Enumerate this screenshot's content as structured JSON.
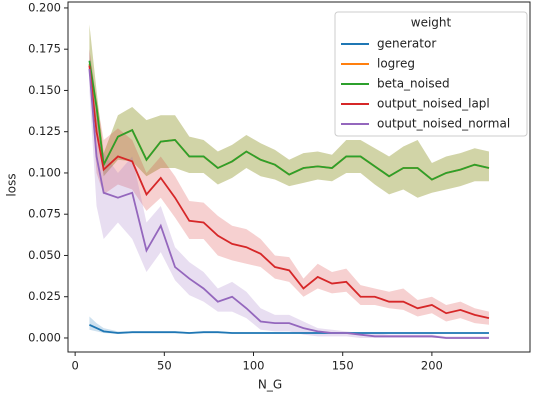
{
  "chart_data": {
    "type": "line",
    "xlabel": "N_G",
    "ylabel": "loss",
    "legend_title": "weight",
    "legend_position": "upper right",
    "x": [
      8,
      12,
      16,
      24,
      32,
      40,
      48,
      56,
      64,
      72,
      80,
      88,
      96,
      104,
      112,
      120,
      128,
      136,
      144,
      152,
      160,
      168,
      176,
      184,
      192,
      200,
      208,
      216,
      224,
      232
    ],
    "xlim": [
      -4,
      255
    ],
    "xticks": [
      0,
      50,
      100,
      150,
      200
    ],
    "ylim": [
      -0.0085,
      0.2036
    ],
    "yticks": [
      {
        "value": 0,
        "label": "0.000"
      },
      {
        "value": 0.025,
        "label": "0.025"
      },
      {
        "value": 0.05,
        "label": "0.050"
      },
      {
        "value": 0.075,
        "label": "0.075"
      },
      {
        "value": 0.1,
        "label": "0.100"
      },
      {
        "value": 0.125,
        "label": "0.125"
      },
      {
        "value": 0.15,
        "label": "0.150"
      },
      {
        "value": 0.175,
        "label": "0.175"
      },
      {
        "value": 0.2,
        "label": "0.200"
      }
    ],
    "series": [
      {
        "name": "generator",
        "color": "#1f77b4",
        "values": [
          0.008,
          0.006,
          0.004,
          0.003,
          0.0035,
          0.0035,
          0.0035,
          0.0035,
          0.003,
          0.0035,
          0.0035,
          0.003,
          0.003,
          0.003,
          0.003,
          0.003,
          0.003,
          0.003,
          0.003,
          0.003,
          0.003,
          0.003,
          0.003,
          0.003,
          0.003,
          0.003,
          0.003,
          0.003,
          0.003,
          0.003
        ],
        "lower": [
          0.005,
          0.004,
          0.003,
          0.0025,
          0.003,
          0.003,
          0.003,
          0.003,
          0.0025,
          0.003,
          0.003,
          0.0025,
          0.0025,
          0.0025,
          0.0025,
          0.0025,
          0.0025,
          0.0025,
          0.0025,
          0.0025,
          0.0025,
          0.0025,
          0.0025,
          0.0025,
          0.0025,
          0.0025,
          0.0025,
          0.0025,
          0.0025,
          0.0025
        ],
        "upper": [
          0.013,
          0.009,
          0.006,
          0.004,
          0.004,
          0.004,
          0.004,
          0.004,
          0.0035,
          0.004,
          0.004,
          0.0035,
          0.0035,
          0.0035,
          0.0035,
          0.0035,
          0.0035,
          0.0035,
          0.0035,
          0.0035,
          0.0035,
          0.0035,
          0.0035,
          0.0035,
          0.0035,
          0.0035,
          0.0035,
          0.0035,
          0.0035,
          0.0035
        ]
      },
      {
        "name": "logreg",
        "color": "#ff7f0e",
        "values": [
          0.166,
          0.14,
          0.105,
          0.122,
          0.126,
          0.108,
          0.119,
          0.12,
          0.11,
          0.11,
          0.103,
          0.107,
          0.113,
          0.108,
          0.105,
          0.099,
          0.103,
          0.104,
          0.103,
          0.11,
          0.11,
          0.104,
          0.098,
          0.103,
          0.103,
          0.096,
          0.1,
          0.102,
          0.105,
          0.103
        ],
        "lower": [
          0.16,
          0.13,
          0.098,
          0.108,
          0.107,
          0.098,
          0.103,
          0.103,
          0.1,
          0.1,
          0.093,
          0.097,
          0.103,
          0.098,
          0.096,
          0.092,
          0.094,
          0.096,
          0.095,
          0.1,
          0.1,
          0.093,
          0.087,
          0.09,
          0.085,
          0.088,
          0.09,
          0.092,
          0.095,
          0.095
        ],
        "upper": [
          0.19,
          0.15,
          0.112,
          0.135,
          0.14,
          0.132,
          0.135,
          0.135,
          0.122,
          0.12,
          0.113,
          0.117,
          0.123,
          0.118,
          0.114,
          0.108,
          0.112,
          0.113,
          0.111,
          0.12,
          0.12,
          0.115,
          0.11,
          0.116,
          0.12,
          0.106,
          0.11,
          0.112,
          0.115,
          0.113
        ]
      },
      {
        "name": "beta_noised",
        "color": "#2ca02c",
        "values": [
          0.168,
          0.14,
          0.105,
          0.122,
          0.126,
          0.108,
          0.119,
          0.12,
          0.11,
          0.11,
          0.103,
          0.107,
          0.113,
          0.108,
          0.105,
          0.099,
          0.103,
          0.104,
          0.103,
          0.11,
          0.11,
          0.104,
          0.098,
          0.103,
          0.103,
          0.096,
          0.1,
          0.102,
          0.105,
          0.103
        ],
        "lower": [
          0.16,
          0.13,
          0.098,
          0.108,
          0.107,
          0.098,
          0.103,
          0.103,
          0.1,
          0.1,
          0.093,
          0.097,
          0.103,
          0.098,
          0.096,
          0.092,
          0.094,
          0.096,
          0.095,
          0.1,
          0.1,
          0.093,
          0.087,
          0.09,
          0.085,
          0.088,
          0.09,
          0.092,
          0.095,
          0.095
        ],
        "upper": [
          0.19,
          0.15,
          0.112,
          0.135,
          0.14,
          0.132,
          0.135,
          0.135,
          0.122,
          0.12,
          0.113,
          0.117,
          0.123,
          0.118,
          0.114,
          0.108,
          0.112,
          0.113,
          0.111,
          0.12,
          0.12,
          0.115,
          0.11,
          0.116,
          0.12,
          0.106,
          0.11,
          0.112,
          0.115,
          0.113
        ]
      },
      {
        "name": "output_noised_lapl",
        "color": "#d62728",
        "values": [
          0.165,
          0.125,
          0.102,
          0.11,
          0.107,
          0.087,
          0.097,
          0.085,
          0.071,
          0.07,
          0.062,
          0.057,
          0.055,
          0.051,
          0.043,
          0.041,
          0.03,
          0.037,
          0.033,
          0.034,
          0.025,
          0.025,
          0.022,
          0.022,
          0.018,
          0.02,
          0.015,
          0.017,
          0.014,
          0.012
        ],
        "lower": [
          0.16,
          0.1,
          0.087,
          0.093,
          0.09,
          0.077,
          0.085,
          0.073,
          0.06,
          0.06,
          0.05,
          0.047,
          0.045,
          0.043,
          0.036,
          0.034,
          0.025,
          0.03,
          0.027,
          0.028,
          0.02,
          0.02,
          0.018,
          0.017,
          0.013,
          0.015,
          0.01,
          0.012,
          0.009,
          0.008
        ],
        "upper": [
          0.175,
          0.145,
          0.12,
          0.127,
          0.12,
          0.1,
          0.11,
          0.098,
          0.083,
          0.082,
          0.074,
          0.068,
          0.066,
          0.06,
          0.05,
          0.049,
          0.036,
          0.045,
          0.04,
          0.042,
          0.032,
          0.03,
          0.028,
          0.03,
          0.023,
          0.025,
          0.02,
          0.022,
          0.018,
          0.016
        ]
      },
      {
        "name": "output_noised_normal",
        "color": "#9467bd",
        "values": [
          0.163,
          0.11,
          0.088,
          0.085,
          0.088,
          0.053,
          0.068,
          0.043,
          0.036,
          0.03,
          0.022,
          0.025,
          0.018,
          0.01,
          0.009,
          0.009,
          0.006,
          0.004,
          0.003,
          0.003,
          0.002,
          0.001,
          0.001,
          0.001,
          0.001,
          0.001,
          0,
          0,
          0,
          0
        ],
        "lower": [
          0.15,
          0.08,
          0.06,
          0.07,
          0.06,
          0.04,
          0.052,
          0.035,
          0.026,
          0.022,
          0.016,
          0.016,
          0.012,
          0.005,
          0.004,
          0.004,
          0.002,
          0.001,
          0.001,
          0.001,
          0,
          0,
          0,
          0,
          0,
          0,
          0,
          0,
          0,
          0
        ],
        "upper": [
          0.175,
          0.135,
          0.112,
          0.1,
          0.11,
          0.07,
          0.08,
          0.055,
          0.046,
          0.04,
          0.03,
          0.034,
          0.028,
          0.018,
          0.014,
          0.014,
          0.01,
          0.006,
          0.005,
          0.004,
          0.003,
          0.003,
          0.002,
          0.002,
          0.002,
          0.002,
          0.001,
          0.001,
          0.001,
          0.001
        ]
      }
    ]
  }
}
